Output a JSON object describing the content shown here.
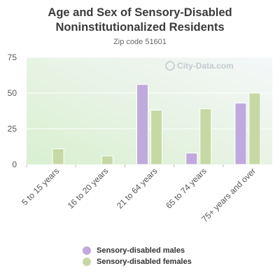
{
  "header": {
    "title_line1": "Age and Sex of Sensory-Disabled",
    "title_line2": "Noninstitutionalized Residents",
    "subtitle": "Zip code 51601"
  },
  "watermark": {
    "text": "City-Data.com",
    "icon": "magnifier-icon"
  },
  "colors": {
    "males": "#c0a9dc",
    "females": "#c6d9a5",
    "plot_bg_top": "#f5f7f9",
    "plot_bg_bottom": "#d9f0d0",
    "axis_text": "#555555"
  },
  "chart_data": {
    "type": "bar",
    "title": "Age and Sex of Sensory-Disabled Noninstitutionalized Residents",
    "subtitle": "Zip code 51601",
    "categories": [
      "5 to 15 years",
      "16 to 20 years",
      "21 to 64 years",
      "65 to 74 years",
      "75+ years and over"
    ],
    "series": [
      {
        "name": "Sensory-disabled males",
        "values": [
          0,
          0,
          56,
          8,
          43
        ]
      },
      {
        "name": "Sensory-disabled females",
        "values": [
          11,
          6,
          38,
          39,
          50
        ]
      }
    ],
    "ylim": [
      0,
      75
    ],
    "yticks": [
      0,
      25,
      50,
      75
    ],
    "grid": true,
    "legend_position": "bottom"
  }
}
